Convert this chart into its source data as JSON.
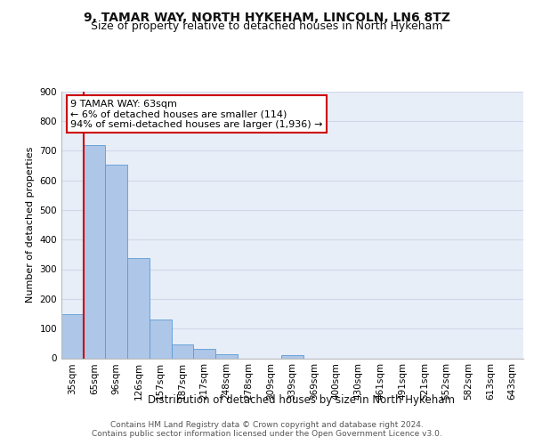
{
  "title1": "9, TAMAR WAY, NORTH HYKEHAM, LINCOLN, LN6 8TZ",
  "title2": "Size of property relative to detached houses in North Hykeham",
  "xlabel": "Distribution of detached houses by size in North Hykeham",
  "ylabel": "Number of detached properties",
  "categories": [
    "35sqm",
    "65sqm",
    "96sqm",
    "126sqm",
    "157sqm",
    "187sqm",
    "217sqm",
    "248sqm",
    "278sqm",
    "309sqm",
    "339sqm",
    "369sqm",
    "400sqm",
    "430sqm",
    "461sqm",
    "491sqm",
    "521sqm",
    "552sqm",
    "582sqm",
    "613sqm",
    "643sqm"
  ],
  "values": [
    150,
    718,
    652,
    337,
    130,
    46,
    33,
    14,
    0,
    0,
    12,
    0,
    0,
    0,
    0,
    0,
    0,
    0,
    0,
    0,
    0
  ],
  "bar_color": "#aec6e8",
  "bar_edge_color": "#5b9bd5",
  "annotation_line1": "9 TAMAR WAY: 63sqm",
  "annotation_line2": "← 6% of detached houses are smaller (114)",
  "annotation_line3": "94% of semi-detached houses are larger (1,936) →",
  "annotation_box_color": "#ffffff",
  "annotation_box_edge_color": "#cc0000",
  "marker_line_color": "#cc0000",
  "ylim": [
    0,
    900
  ],
  "yticks": [
    0,
    100,
    200,
    300,
    400,
    500,
    600,
    700,
    800,
    900
  ],
  "grid_color": "#d0d8e8",
  "bg_color": "#e8eef8",
  "footer_line1": "Contains HM Land Registry data © Crown copyright and database right 2024.",
  "footer_line2": "Contains public sector information licensed under the Open Government Licence v3.0.",
  "title1_fontsize": 10,
  "title2_fontsize": 9,
  "xlabel_fontsize": 8.5,
  "ylabel_fontsize": 8,
  "tick_fontsize": 7.5,
  "annotation_fontsize": 8,
  "footer_fontsize": 6.5
}
